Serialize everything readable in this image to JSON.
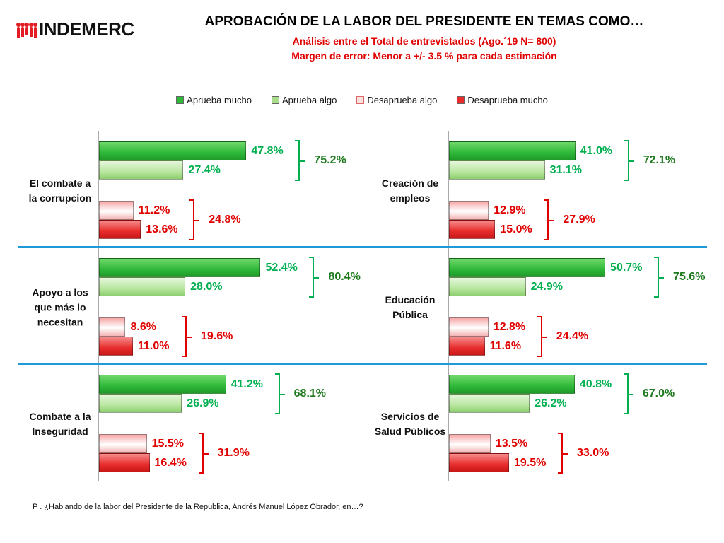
{
  "logo_text": "INDEMERC",
  "title": "APROBACIÓN DE LA LABOR DEL PRESIDENTE EN TEMAS COMO…",
  "subtitle1": "Análisis entre el Total de entrevistados (Ago.´19 N= 800)",
  "subtitle2": "Margen de error: Menor a +/- 3.5 %  para cada estimación",
  "footnote": "P . ¿Hablando de la labor del Presidente de la Republica, Andrés Manuel López Obrador, en…?",
  "colors": {
    "aprueba_mucho": "#2fb83a",
    "aprueba_algo": "#a9dd8c",
    "desaprueba_algo": "#f9c6c6",
    "desaprueba_mucho": "#e82c2c",
    "green_label": "#00b050",
    "green_total": "#1f7a1f",
    "red_label": "#e00000",
    "separator": "#1f9ad6"
  },
  "chart_data": {
    "type": "bar",
    "orientation": "horizontal",
    "legend_position": "top",
    "series_names": [
      "Aprueba mucho",
      "Aprueba algo",
      "Desaprueba algo",
      "Desaprueba mucho"
    ],
    "panels": [
      {
        "category": "El combate a la corrupcion",
        "lines": [
          "El combate a",
          "la corrupcion"
        ],
        "values": [
          47.8,
          27.4,
          11.2,
          13.6
        ],
        "labels": [
          "47.8%",
          "27.4%",
          "11.2%",
          "13.6%"
        ],
        "approve_total": "75.2%",
        "disapprove_total": "24.8%"
      },
      {
        "category": "Creación de empleos",
        "lines": [
          "Creación de",
          "empleos"
        ],
        "values": [
          41.0,
          31.1,
          12.9,
          15.0
        ],
        "labels": [
          "41.0%",
          "31.1%",
          "12.9%",
          "15.0%"
        ],
        "approve_total": "72.1%",
        "disapprove_total": "27.9%"
      },
      {
        "category": "Apoyo a los que más lo necesitan",
        "lines": [
          "Apoyo a los",
          "que más lo",
          "necesitan"
        ],
        "values": [
          52.4,
          28.0,
          8.6,
          11.0
        ],
        "labels": [
          "52.4%",
          "28.0%",
          "8.6%",
          "11.0%"
        ],
        "approve_total": "80.4%",
        "disapprove_total": "19.6%"
      },
      {
        "category": "Educación Pública",
        "lines": [
          "Educación",
          "Pública"
        ],
        "values": [
          50.7,
          24.9,
          12.8,
          11.6
        ],
        "labels": [
          "50.7%",
          "24.9%",
          "12.8%",
          "11.6%"
        ],
        "approve_total": "75.6%",
        "disapprove_total": "24.4%"
      },
      {
        "category": "Combate a la Inseguridad",
        "lines": [
          "Combate a la",
          "Inseguridad"
        ],
        "values": [
          41.2,
          26.9,
          15.5,
          16.4
        ],
        "labels": [
          "41.2%",
          "26.9%",
          "15.5%",
          "16.4%"
        ],
        "approve_total": "68.1%",
        "disapprove_total": "31.9%"
      },
      {
        "category": "Servicios de Salud Públicos",
        "lines": [
          "Servicios de",
          "Salud Públicos"
        ],
        "values": [
          40.8,
          26.2,
          13.5,
          19.5
        ],
        "labels": [
          "40.8%",
          "26.2%",
          "13.5%",
          "19.5%"
        ],
        "approve_total": "67.0%",
        "disapprove_total": "33.0%"
      }
    ]
  }
}
